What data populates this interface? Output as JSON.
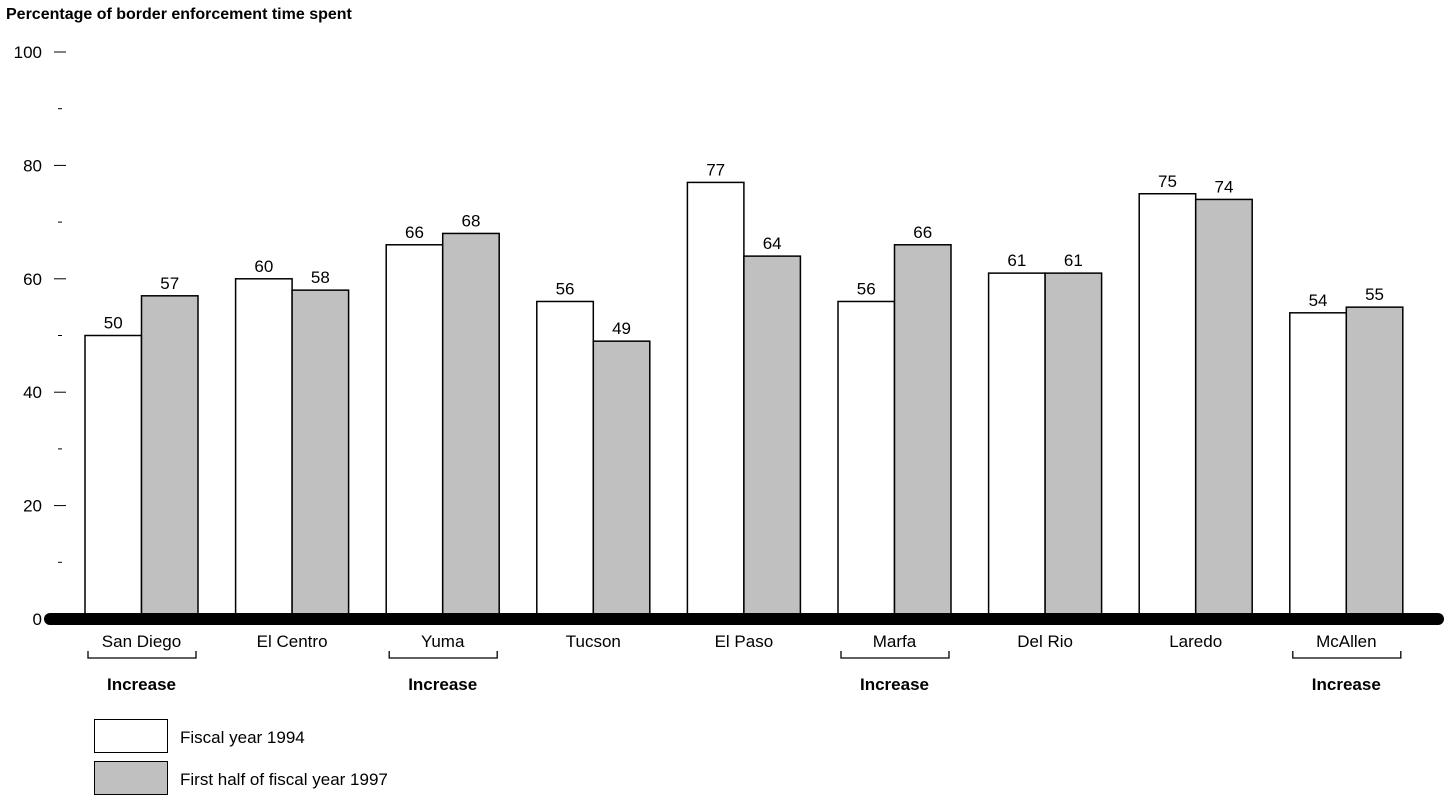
{
  "chart_data": {
    "type": "bar",
    "ylabel": "Percentage of border enforcement time spent",
    "ylim": [
      0,
      100
    ],
    "yticks": [
      "0",
      "20",
      "40",
      "60",
      "80",
      "100"
    ],
    "categories": [
      "San Diego",
      "El Centro",
      "Yuma",
      "Tucson",
      "El Paso",
      "Marfa",
      "Del Rio",
      "Laredo",
      "McAllen"
    ],
    "series": [
      {
        "name": "Fiscal year 1994",
        "color": "#ffffff",
        "values": [
          50,
          60,
          66,
          56,
          77,
          56,
          61,
          75,
          54
        ]
      },
      {
        "name": "First half of fiscal year 1997",
        "color": "#c0c0c0",
        "values": [
          57,
          58,
          68,
          49,
          64,
          66,
          61,
          74,
          55
        ]
      }
    ],
    "annotations": [
      {
        "category": "San Diego",
        "text": "Increase"
      },
      {
        "category": "Yuma",
        "text": "Increase"
      },
      {
        "category": "Marfa",
        "text": "Increase"
      },
      {
        "category": "McAllen",
        "text": "Increase"
      }
    ],
    "grid": false,
    "legend_position": "bottom-left"
  }
}
